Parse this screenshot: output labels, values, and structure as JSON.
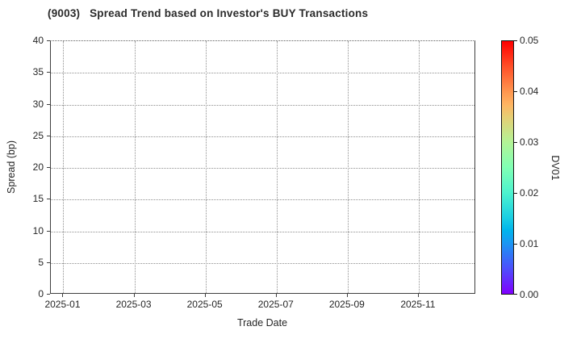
{
  "title": "(9003)   Spread Trend based on Investor's BUY Transactions",
  "chart_data": {
    "type": "scatter",
    "title": "(9003)   Spread Trend based on Investor's BUY Transactions",
    "xlabel": "Trade Date",
    "ylabel": "Spread (bp)",
    "points": [],
    "grid": true,
    "grid_style": "dotted",
    "ylim": [
      0,
      40
    ],
    "y_ticks": [
      0,
      5,
      10,
      15,
      20,
      25,
      30,
      35,
      40
    ],
    "x_ticks": [
      {
        "label": "2025-01",
        "pos": 0.0294
      },
      {
        "label": "2025-03",
        "pos": 0.1966
      },
      {
        "label": "2025-05",
        "pos": 0.3637
      },
      {
        "label": "2025-07",
        "pos": 0.5309
      },
      {
        "label": "2025-09",
        "pos": 0.698
      },
      {
        "label": "2025-11",
        "pos": 0.8651
      }
    ],
    "colorbar": {
      "label": "DV01",
      "range": [
        0.0,
        0.05
      ],
      "ticks": [
        "0.00",
        "0.01",
        "0.02",
        "0.03",
        "0.04",
        "0.05"
      ],
      "colormap": "rainbow",
      "gradient_stops": [
        {
          "pos": 0.0,
          "color": "#8000ff"
        },
        {
          "pos": 0.1,
          "color": "#4d4ffc"
        },
        {
          "pos": 0.2,
          "color": "#1a96f3"
        },
        {
          "pos": 0.25,
          "color": "#00b4ec"
        },
        {
          "pos": 0.3,
          "color": "#1acee3"
        },
        {
          "pos": 0.4,
          "color": "#4df3ce"
        },
        {
          "pos": 0.5,
          "color": "#80ffb4"
        },
        {
          "pos": 0.6,
          "color": "#b3f396"
        },
        {
          "pos": 0.7,
          "color": "#e6ce74"
        },
        {
          "pos": 0.75,
          "color": "#ffb462"
        },
        {
          "pos": 0.8,
          "color": "#ff964f"
        },
        {
          "pos": 0.9,
          "color": "#ff4f28"
        },
        {
          "pos": 1.0,
          "color": "#ff0000"
        }
      ]
    }
  },
  "colors": {
    "background": "#ffffff",
    "spine": "#3f3f3f",
    "gridline": "#8f8f8f",
    "text": "#262626"
  }
}
